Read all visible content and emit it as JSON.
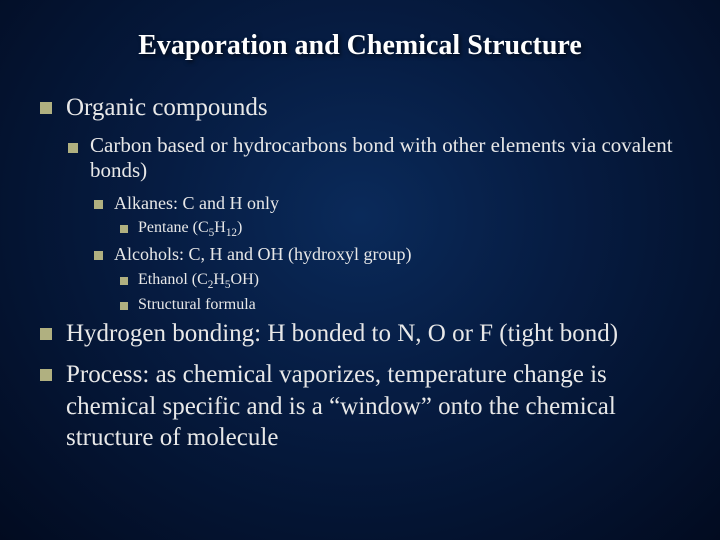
{
  "colors": {
    "background_center": "#0a2a5a",
    "background_mid": "#061c42",
    "background_edge": "#020b20",
    "title_color": "#ffffff",
    "text_color": "#e8e8e8",
    "bullet_color": "#b0b080"
  },
  "typography": {
    "font_family": "Times New Roman",
    "title_size_pt": 28,
    "lvl1_size_pt": 25,
    "lvl2_size_pt": 21,
    "lvl3_size_pt": 18,
    "lvl4_size_pt": 16
  },
  "title": "Evaporation and Chemical Structure",
  "bullets": {
    "organic": "Organic compounds",
    "carbon": "Carbon based or hydrocarbons bond with other elements via covalent bonds)",
    "alkanes": "Alkanes: C and H only",
    "pentane_pre": "Pentane (C",
    "pentane_sub1": "5",
    "pentane_mid": "H",
    "pentane_sub2": "12",
    "pentane_post": ")",
    "alcohols": "Alcohols: C, H and OH (hydroxyl group)",
    "ethanol_pre": "Ethanol (C",
    "ethanol_sub1": "2",
    "ethanol_mid1": "H",
    "ethanol_sub2": "5",
    "ethanol_post": "OH)",
    "structural": "Structural formula",
    "hbond": "Hydrogen bonding: H bonded to N, O or F (tight bond)",
    "process": "Process: as chemical vaporizes, temperature change is chemical specific and is a “window” onto the chemical structure of molecule"
  }
}
